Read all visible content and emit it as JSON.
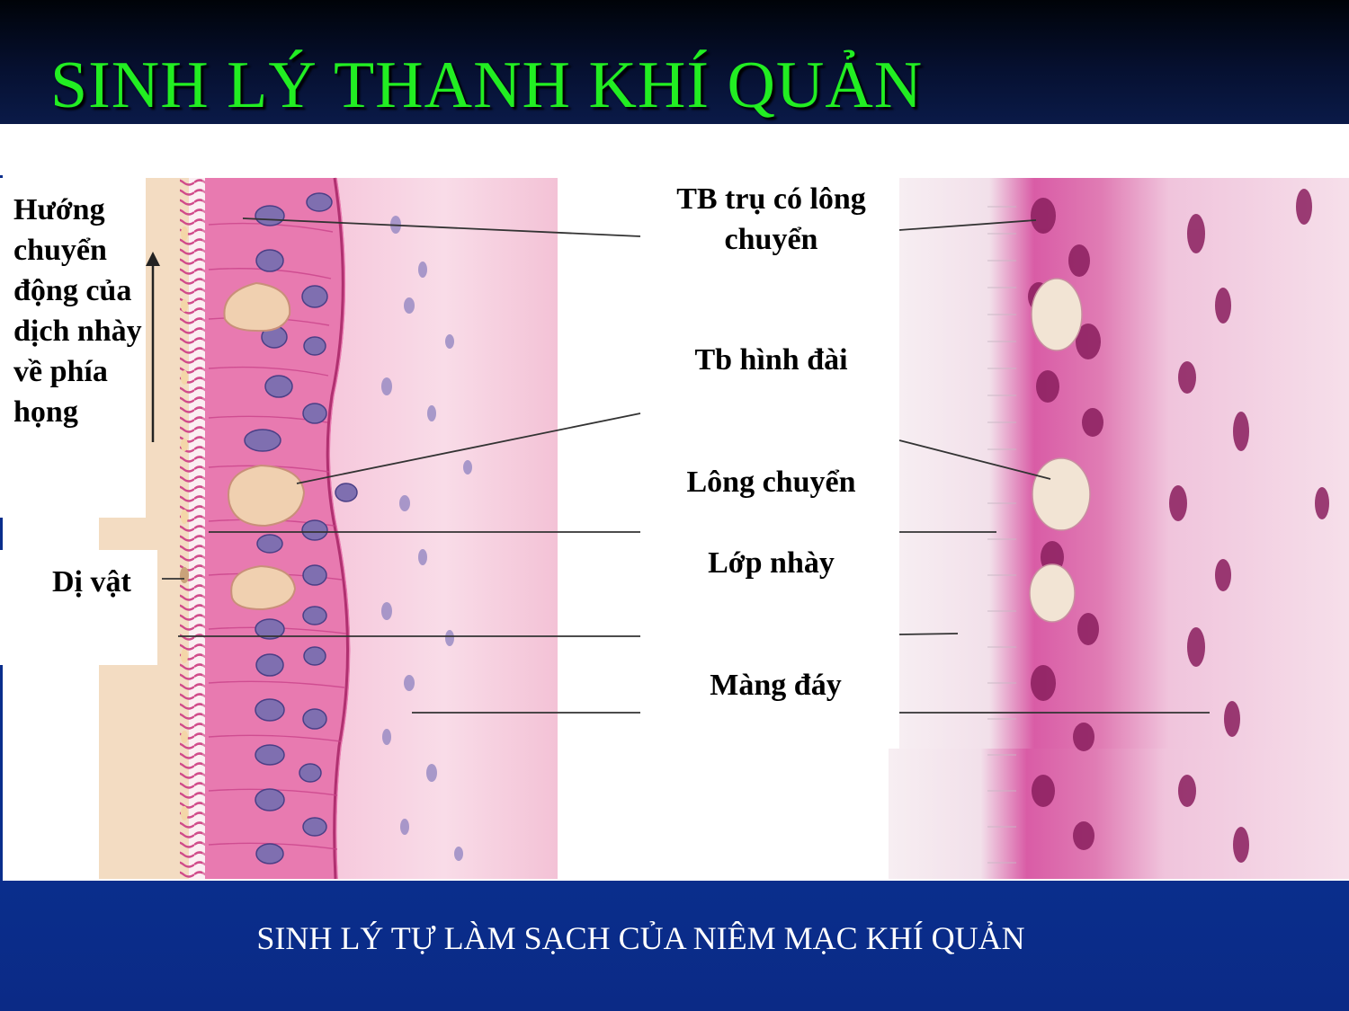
{
  "title": "SINH LÝ THANH KHÍ QUẢN",
  "caption": "SINH LÝ TỰ LÀM SẠCH CỦA NIÊM MẠC KHÍ QUẢN",
  "labels": {
    "direction": "Hướng chuyển động của dịch nhày về phía họng",
    "foreign_body": "Dị vật",
    "ciliated_cell": "TB trụ có lông chuyển",
    "goblet_cell": "Tb hình đài",
    "cilia": "Lông chuyển",
    "mucus_layer": "Lớp nhày",
    "basement_membrane": "Màng đáy"
  },
  "colors": {
    "title": "#22ee22",
    "header": "#061030",
    "footer": "#0b2a86",
    "epithelium": "#e87ab0",
    "nucleus": "#7f6fb0",
    "goblet": "#f0d0b0",
    "histology_nucleus": "#8a1e5e"
  }
}
